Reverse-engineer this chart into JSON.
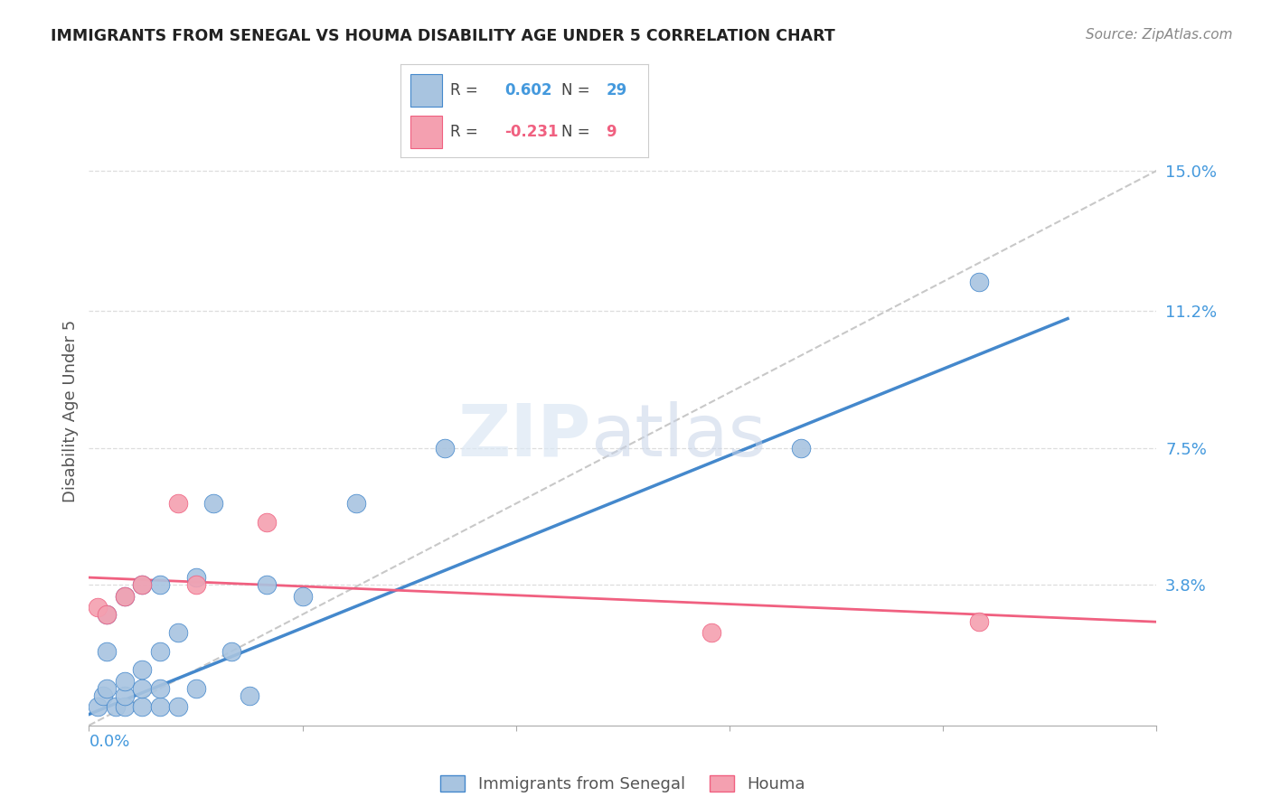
{
  "title": "IMMIGRANTS FROM SENEGAL VS HOUMA DISABILITY AGE UNDER 5 CORRELATION CHART",
  "source": "Source: ZipAtlas.com",
  "ylabel": "Disability Age Under 5",
  "ytick_labels": [
    "15.0%",
    "11.2%",
    "7.5%",
    "3.8%"
  ],
  "ytick_values": [
    0.15,
    0.112,
    0.075,
    0.038
  ],
  "xlim": [
    0.0,
    0.06
  ],
  "ylim": [
    0.0,
    0.17
  ],
  "blue_color": "#a8c4e0",
  "blue_line_color": "#4488cc",
  "pink_color": "#f4a0b0",
  "pink_line_color": "#f06080",
  "diag_color": "#c8c8c8",
  "blue_scatter_x": [
    0.0005,
    0.0008,
    0.001,
    0.001,
    0.001,
    0.0015,
    0.002,
    0.002,
    0.002,
    0.002,
    0.003,
    0.003,
    0.003,
    0.003,
    0.004,
    0.004,
    0.004,
    0.004,
    0.005,
    0.005,
    0.006,
    0.006,
    0.007,
    0.008,
    0.009,
    0.01,
    0.012,
    0.015,
    0.02,
    0.04,
    0.05
  ],
  "blue_scatter_y": [
    0.005,
    0.008,
    0.01,
    0.02,
    0.03,
    0.005,
    0.005,
    0.008,
    0.012,
    0.035,
    0.005,
    0.01,
    0.015,
    0.038,
    0.005,
    0.01,
    0.02,
    0.038,
    0.005,
    0.025,
    0.01,
    0.04,
    0.06,
    0.02,
    0.008,
    0.038,
    0.035,
    0.06,
    0.075,
    0.075,
    0.12
  ],
  "pink_scatter_x": [
    0.0005,
    0.001,
    0.002,
    0.003,
    0.005,
    0.006,
    0.01,
    0.035,
    0.05
  ],
  "pink_scatter_y": [
    0.032,
    0.03,
    0.035,
    0.038,
    0.06,
    0.038,
    0.055,
    0.025,
    0.028
  ],
  "blue_line_x": [
    0.0,
    0.055
  ],
  "blue_line_y": [
    0.003,
    0.11
  ],
  "pink_line_x": [
    0.0,
    0.06
  ],
  "pink_line_y": [
    0.04,
    0.028
  ],
  "diag_line_x": [
    0.0,
    0.06
  ],
  "diag_line_y": [
    0.0,
    0.15
  ],
  "xtick_positions": [
    0.0,
    0.012,
    0.024,
    0.036,
    0.048,
    0.06
  ],
  "grid_color": "#dddddd"
}
